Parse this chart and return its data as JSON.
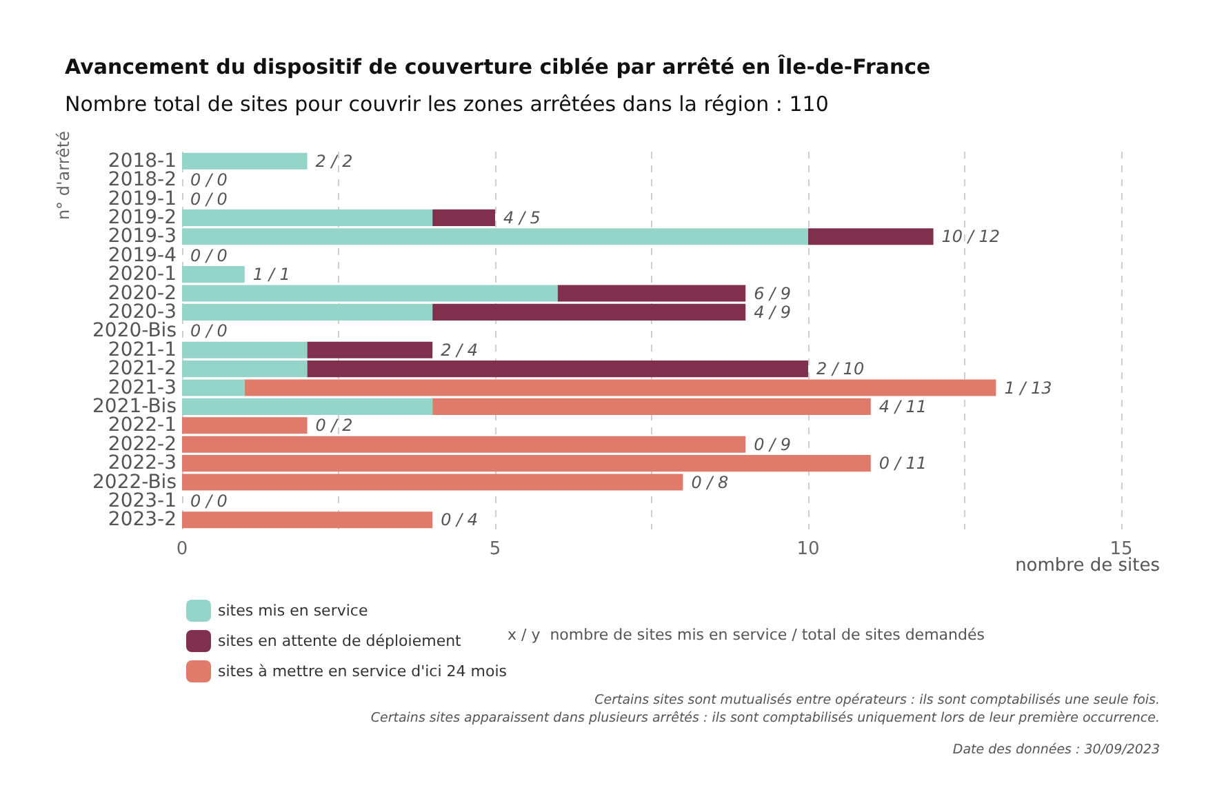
{
  "chart_data": {
    "type": "bar",
    "orientation": "horizontal",
    "stacked": true,
    "title": "Avancement du dispositif de couverture ciblée par arrêté en Île-de-France",
    "subtitle": "Nombre total de sites pour couvrir les zones arrêtées dans la région : 110",
    "xlabel": "nombre de sites",
    "ylabel": "n° d'arrêté",
    "categories": [
      "2018-1",
      "2018-2",
      "2019-1",
      "2019-2",
      "2019-3",
      "2019-4",
      "2020-1",
      "2020-2",
      "2020-3",
      "2020-Bis",
      "2021-1",
      "2021-2",
      "2021-3",
      "2021-Bis",
      "2022-1",
      "2022-2",
      "2022-3",
      "2022-Bis",
      "2023-1",
      "2023-2"
    ],
    "series": [
      {
        "name": "sites mis en service",
        "color": "#95d5c9",
        "values": [
          2,
          0,
          0,
          4,
          10,
          0,
          1,
          6,
          4,
          0,
          2,
          2,
          1,
          4,
          0,
          0,
          0,
          0,
          0,
          0
        ]
      },
      {
        "name": "sites en attente de déploiement",
        "color": "#80304c",
        "values": [
          0,
          0,
          0,
          1,
          2,
          0,
          0,
          3,
          5,
          0,
          2,
          8,
          0,
          0,
          0,
          0,
          0,
          0,
          0,
          0
        ]
      },
      {
        "name": "sites à mettre en service d'ici 24 mois",
        "color": "#e07b6b",
        "values": [
          0,
          0,
          0,
          0,
          0,
          0,
          0,
          0,
          0,
          0,
          0,
          0,
          12,
          7,
          2,
          9,
          11,
          8,
          0,
          4
        ]
      }
    ],
    "xlim": [
      0,
      15
    ],
    "xticks": [
      0,
      {
        "value": 2.5,
        "label": null
      },
      5,
      {
        "value": 7.5,
        "label": null
      },
      10,
      {
        "value": 12.5,
        "label": null
      },
      15
    ],
    "grid": "x",
    "legend": "bottom left",
    "annotations": [
      {
        "text": "2 / 2",
        "x": 2,
        "y": "2018-1"
      },
      {
        "text": "0 / 0",
        "x": 0,
        "y": "2018-2"
      },
      {
        "text": "0 / 0",
        "x": 0,
        "y": "2019-1"
      },
      {
        "text": "4 / 5",
        "x": 5,
        "y": "2019-2"
      },
      {
        "text": "10 / 12",
        "x": 12,
        "y": "2019-3"
      },
      {
        "text": "0 / 0",
        "x": 0,
        "y": "2019-4"
      },
      {
        "text": "1 / 1",
        "x": 1,
        "y": "2020-1"
      },
      {
        "text": "6 / 9",
        "x": 9,
        "y": "2020-2"
      },
      {
        "text": "4 / 9",
        "x": 9,
        "y": "2020-3"
      },
      {
        "text": "0 / 0",
        "x": 0,
        "y": "2020-Bis"
      },
      {
        "text": "2 / 4",
        "x": 4,
        "y": "2021-1"
      },
      {
        "text": "2 / 10",
        "x": 10,
        "y": "2021-2"
      },
      {
        "text": "1 / 13",
        "x": 13,
        "y": "2021-3"
      },
      {
        "text": "4 / 11",
        "x": 11,
        "y": "2021-Bis"
      },
      {
        "text": "0 / 2",
        "x": 2,
        "y": "2022-1"
      },
      {
        "text": "0 / 9",
        "x": 9,
        "y": "2022-2"
      },
      {
        "text": "0 / 11",
        "x": 11,
        "y": "2022-3"
      },
      {
        "text": "0 / 8",
        "x": 8,
        "y": "2022-Bis"
      },
      {
        "text": "0 / 0",
        "x": 0,
        "y": "2023-1"
      },
      {
        "text": "0 / 4",
        "x": 4,
        "y": "2023-2"
      },
      "x / y  nombre de sites mis en service / total de sites demandés",
      "Certains sites sont mutualisés entre opérateurs : ils sont comptabilisés une seule fois.",
      "Certains sites apparaissent dans plusieurs arrêtés : ils sont comptabilisés uniquement lors de leur première occurrence.",
      "Date des données : 30/09/2023"
    ]
  }
}
